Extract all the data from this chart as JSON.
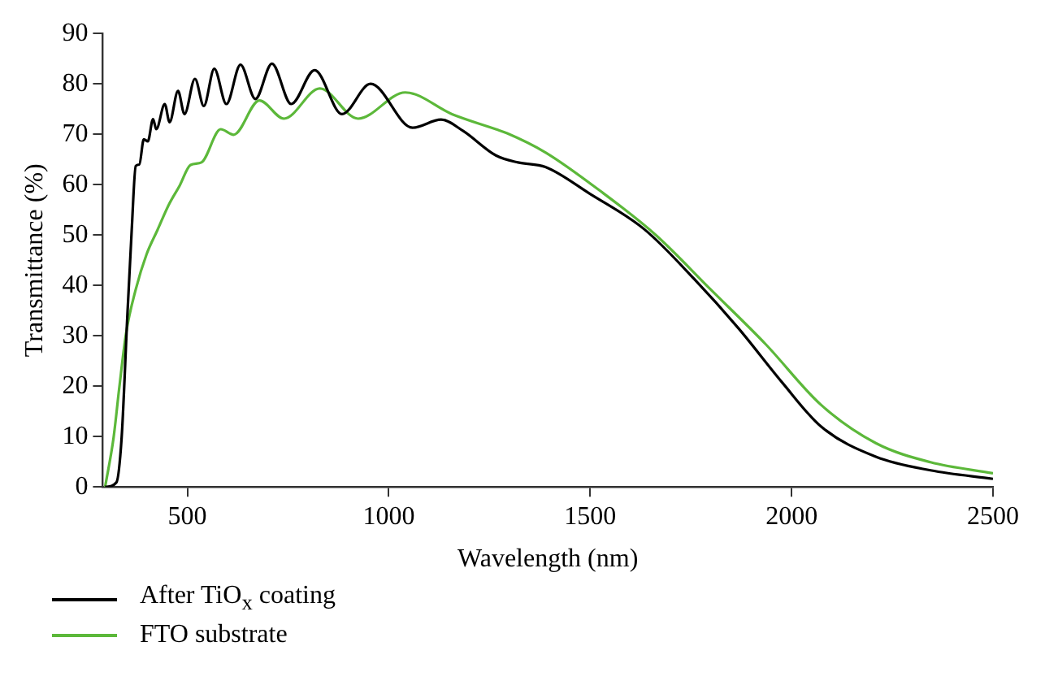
{
  "chart_data": {
    "type": "line",
    "xlabel": "Wavelength (nm)",
    "ylabel": "Transmittance (%)",
    "xlim": [
      290,
      2500
    ],
    "xticks": [
      500,
      1000,
      1500,
      2000,
      2500
    ],
    "ylim": [
      0,
      90
    ],
    "yticks": [
      0,
      10,
      20,
      30,
      40,
      50,
      60,
      70,
      80,
      90
    ],
    "grid": false,
    "legend": "bottom left",
    "marker": "none",
    "line_style": "solid",
    "series": [
      {
        "name": "After TiO$_{x}$ coating",
        "color": "#000000",
        "x": [
          296,
          324,
          337,
          351,
          362,
          372,
          381,
          392,
          402,
          415,
          423,
          444,
          456,
          477,
          493,
          519,
          541,
          567,
          597,
          632,
          669,
          710,
          758,
          816,
          884,
          955,
          1059,
          1130,
          1184,
          1266,
          1321,
          1389,
          1499,
          1635,
          1758,
          1868,
          1977,
          2073,
          2209,
          2345,
          2500
        ],
        "values": [
          0,
          0.9,
          9.8,
          33.7,
          51,
          63.7,
          64,
          69,
          68.6,
          73,
          71,
          76,
          72.4,
          78.6,
          74,
          81,
          75.6,
          83,
          76,
          83.8,
          77,
          84,
          76,
          82.7,
          74,
          80,
          71.3,
          72.9,
          70.7,
          65.8,
          64.4,
          63.5,
          58.2,
          51.1,
          41.3,
          31.5,
          20.7,
          12,
          6,
          3.3,
          1.6
        ]
      },
      {
        "name": "FTO substrate",
        "color": "#5cb83a",
        "x": [
          296,
          317,
          331,
          348,
          372,
          399,
          426,
          454,
          481,
          508,
          535,
          583,
          615,
          679,
          740,
          829,
          924,
          1041,
          1157,
          1266,
          1294,
          1389,
          1526,
          1663,
          1799,
          1936,
          2073,
          2209,
          2345,
          2500
        ],
        "values": [
          0,
          9.8,
          19.6,
          30.5,
          39.2,
          46.2,
          51,
          56,
          59.8,
          63.9,
          64.4,
          71,
          69.9,
          76.7,
          73.1,
          79.1,
          73.1,
          78.3,
          74,
          71,
          70.2,
          66.4,
          58.7,
          50,
          39.2,
          28.3,
          16.3,
          8.7,
          4.9,
          2.7
        ]
      }
    ]
  }
}
